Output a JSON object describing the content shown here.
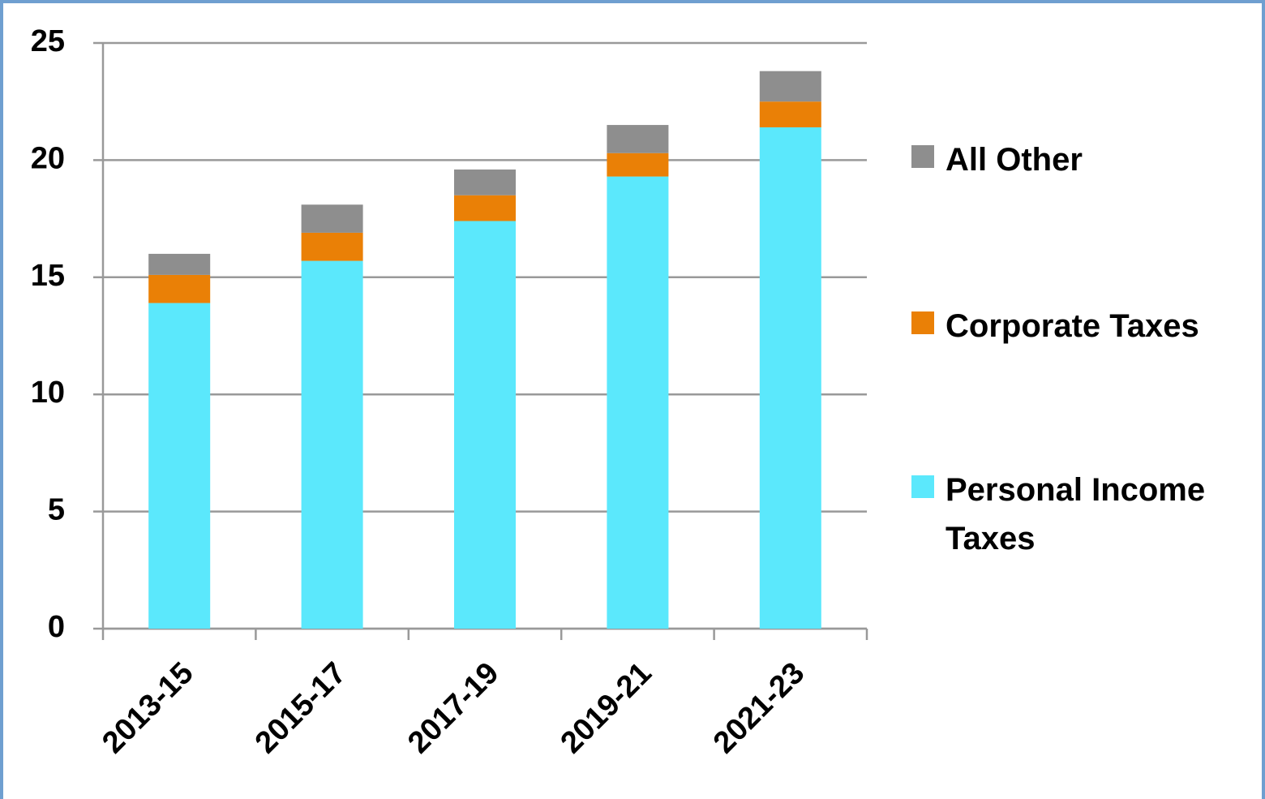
{
  "chart_data": {
    "type": "stacked_bar",
    "categories": [
      "2013-15",
      "2015-17",
      "2017-19",
      "2019-21",
      "2021-23"
    ],
    "series": [
      {
        "name": "Personal Income Taxes",
        "color": "#5be8fc",
        "values": [
          13.9,
          15.7,
          17.4,
          19.3,
          21.4
        ]
      },
      {
        "name": "Corporate Taxes",
        "color": "#ea8006",
        "values": [
          1.2,
          1.2,
          1.1,
          1.0,
          1.1
        ]
      },
      {
        "name": "All Other",
        "color": "#8e8e8e",
        "values": [
          0.9,
          1.2,
          1.1,
          1.2,
          1.3
        ]
      }
    ],
    "ylim": [
      0,
      25
    ],
    "yticks": [
      0,
      5,
      10,
      15,
      20,
      25
    ],
    "grid": true,
    "legend": "right"
  }
}
